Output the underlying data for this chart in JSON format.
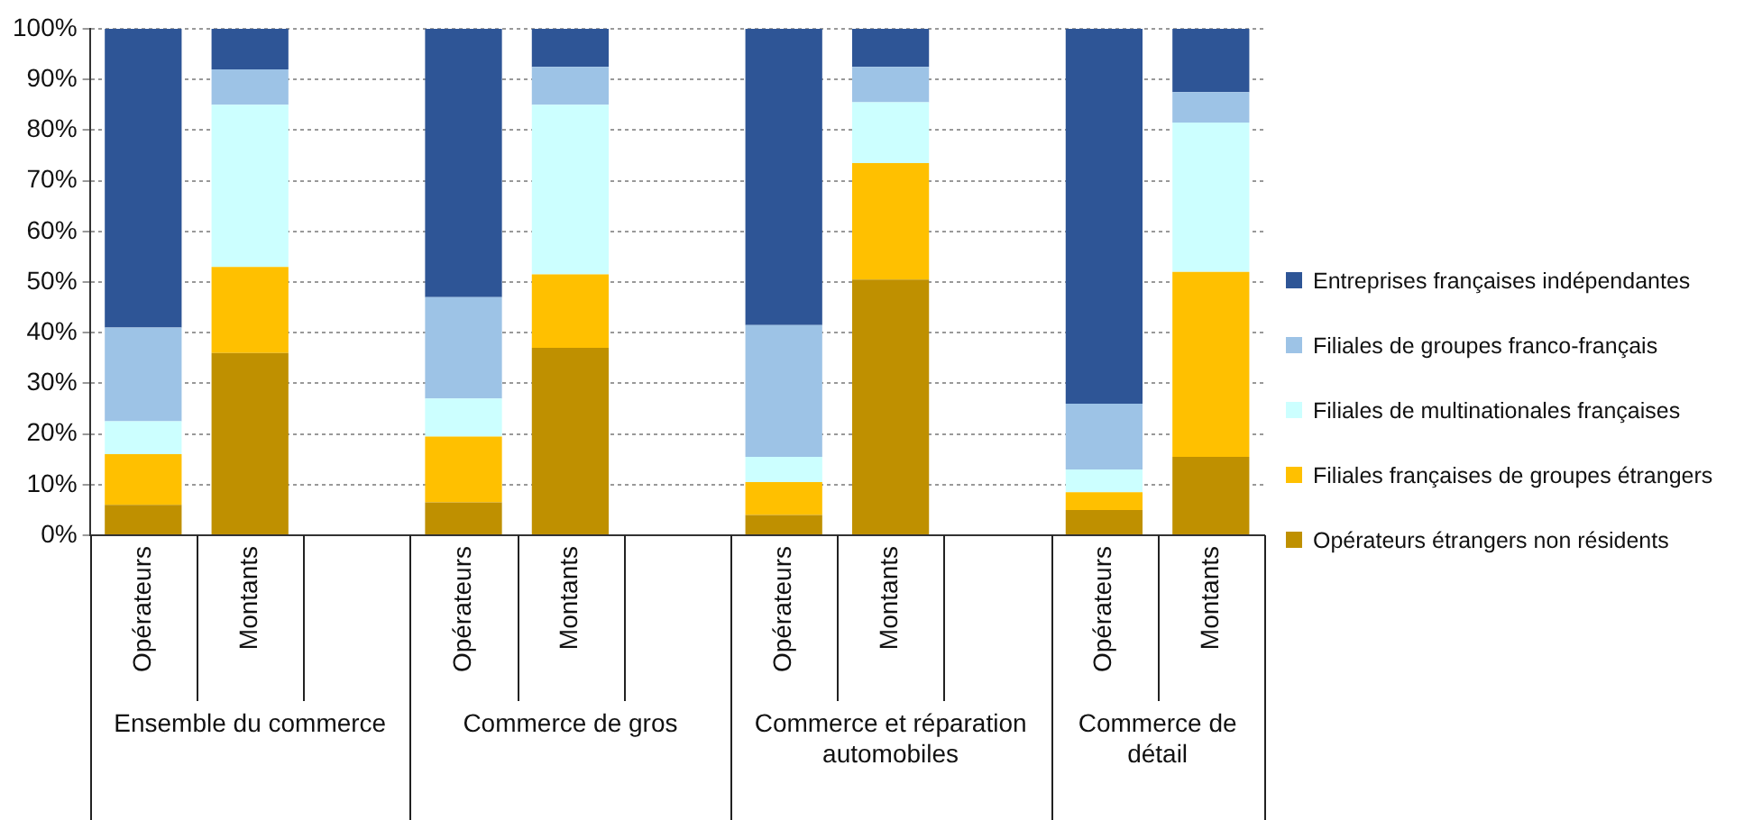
{
  "chart_data": {
    "type": "bar",
    "stacked": true,
    "categories": [
      "Opérateurs",
      "Montants",
      null,
      "Opérateurs",
      "Montants",
      null,
      "Opérateurs",
      "Montants",
      null,
      "Opérateurs",
      "Montants"
    ],
    "series": [
      {
        "name": "Opérateurs étrangers non résidents",
        "color": "#bf9000",
        "values": [
          6,
          36,
          null,
          6.5,
          37,
          null,
          4,
          50.5,
          null,
          5,
          15.5
        ]
      },
      {
        "name": "Filiales françaises de groupes étrangers",
        "color": "#ffc000",
        "values": [
          10,
          17,
          null,
          13,
          14.5,
          null,
          6.5,
          23,
          null,
          3.5,
          36.5
        ]
      },
      {
        "name": "Filiales de multinationales françaises",
        "color": "#ccffff",
        "values": [
          6.5,
          32,
          null,
          7.5,
          33.5,
          null,
          5,
          12,
          null,
          4.5,
          29.5
        ]
      },
      {
        "name": "Filiales de groupes franco-français",
        "color": "#9dc3e6",
        "values": [
          18.5,
          7,
          null,
          20,
          7.5,
          null,
          26,
          7,
          null,
          13,
          6
        ]
      },
      {
        "name": "Entreprises françaises indépendantes",
        "color": "#2e5596",
        "values": [
          59,
          8,
          null,
          53,
          7.5,
          null,
          58.5,
          7.5,
          null,
          74,
          12.5
        ]
      }
    ],
    "ylim": [
      0,
      100
    ],
    "yticks": [
      {
        "value": 0,
        "label": "0%"
      },
      {
        "value": 10,
        "label": "10%"
      },
      {
        "value": 20,
        "label": "20%"
      },
      {
        "value": 30,
        "label": "30%"
      },
      {
        "value": 40,
        "label": "40%"
      },
      {
        "value": 50,
        "label": "50%"
      },
      {
        "value": 60,
        "label": "60%"
      },
      {
        "value": 70,
        "label": "70%"
      },
      {
        "value": 80,
        "label": "80%"
      },
      {
        "value": 90,
        "label": "90%"
      },
      {
        "value": 100,
        "label": "100%"
      }
    ],
    "annotations": [
      "Ensemble du commerce",
      "Commerce de gros",
      "Commerce et réparation automobiles",
      "Commerce de détail"
    ],
    "grid": "y",
    "legend": "right"
  }
}
